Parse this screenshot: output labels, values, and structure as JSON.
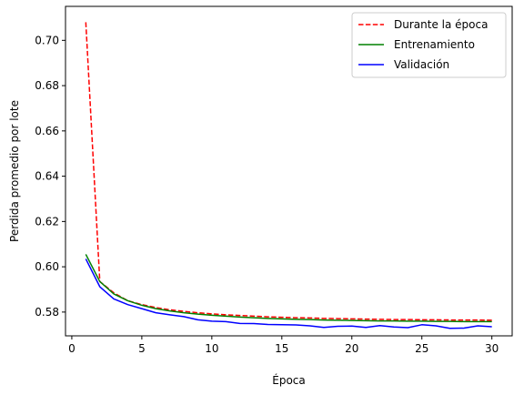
{
  "chart_data": {
    "type": "line",
    "title": "",
    "xlabel": "Época",
    "ylabel": "Perdida promedio por lote",
    "xlim": [
      -0.45,
      31.45
    ],
    "ylim": [
      0.5695,
      0.715
    ],
    "xticks": [
      0,
      5,
      10,
      15,
      20,
      25,
      30
    ],
    "yticks": [
      0.58,
      0.6,
      0.62,
      0.64,
      0.66,
      0.68,
      0.7
    ],
    "ytick_labels": [
      "0.58",
      "0.60",
      "0.62",
      "0.64",
      "0.66",
      "0.68",
      "0.70"
    ],
    "grid": false,
    "legend_position": "top-right",
    "x": [
      1,
      2,
      3,
      4,
      5,
      6,
      7,
      8,
      9,
      10,
      11,
      12,
      13,
      14,
      15,
      16,
      17,
      18,
      19,
      20,
      21,
      22,
      23,
      24,
      25,
      26,
      27,
      28,
      29,
      30
    ],
    "series": [
      {
        "name": "Durante la época",
        "color": "#ff0000",
        "dash": "dashed",
        "values": [
          0.708,
          0.5935,
          0.5885,
          0.585,
          0.5833,
          0.582,
          0.581,
          0.5803,
          0.5797,
          0.5792,
          0.5788,
          0.5785,
          0.5782,
          0.5779,
          0.5777,
          0.5775,
          0.5774,
          0.5772,
          0.5771,
          0.577,
          0.5769,
          0.5768,
          0.5767,
          0.5767,
          0.5766,
          0.5766,
          0.5765,
          0.5765,
          0.5765,
          0.5764
        ]
      },
      {
        "name": "Entrenamiento",
        "color": "#008000",
        "dash": "solid",
        "values": [
          0.6055,
          0.5935,
          0.588,
          0.585,
          0.583,
          0.5815,
          0.5805,
          0.5797,
          0.5791,
          0.5786,
          0.5782,
          0.5778,
          0.5775,
          0.5772,
          0.577,
          0.5768,
          0.5767,
          0.5765,
          0.5764,
          0.5763,
          0.5762,
          0.5761,
          0.5761,
          0.576,
          0.576,
          0.5759,
          0.5759,
          0.5758,
          0.5758,
          0.5758
        ]
      },
      {
        "name": "Validación",
        "color": "#0000ff",
        "dash": "solid",
        "values": [
          0.6035,
          0.5912,
          0.5858,
          0.5833,
          0.5815,
          0.5797,
          0.5788,
          0.578,
          0.5766,
          0.576,
          0.5758,
          0.575,
          0.5749,
          0.5745,
          0.5744,
          0.5743,
          0.5739,
          0.5732,
          0.5737,
          0.5738,
          0.5732,
          0.574,
          0.5734,
          0.5731,
          0.5744,
          0.5739,
          0.5728,
          0.5729,
          0.5739,
          0.5735
        ]
      }
    ]
  }
}
